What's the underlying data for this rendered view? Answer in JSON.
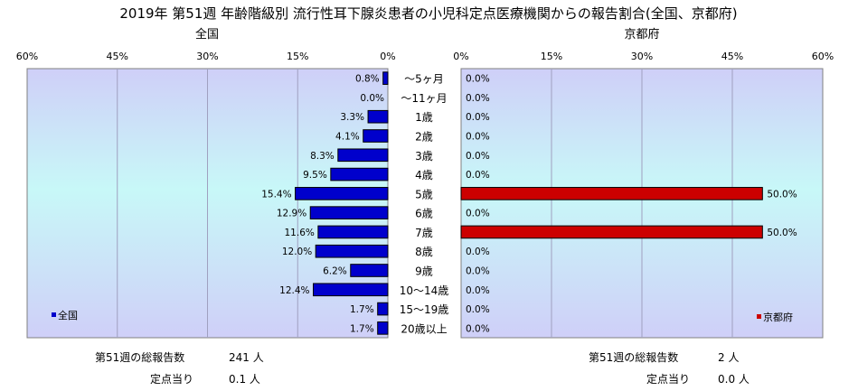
{
  "title": "2019年 第51週 年齢階級別 流行性耳下腺炎患者の小児科定点医療機関からの報告割合(全国、京都府)",
  "left_panel_title": "全国",
  "right_panel_title": "京都府",
  "colors": {
    "nation_bar": "#0000cc",
    "kyoto_bar": "#cc0000",
    "plot_bg_top": "#cfcff8",
    "plot_bg_mid": "#c8f8f8",
    "grid": "#a0a0c0"
  },
  "chart_data": {
    "type": "bar",
    "orientation": "horizontal-butterfly",
    "categories": [
      "〜5ヶ月",
      "〜11ヶ月",
      "1歳",
      "2歳",
      "3歳",
      "4歳",
      "5歳",
      "6歳",
      "7歳",
      "8歳",
      "9歳",
      "10〜14歳",
      "15〜19歳",
      "20歳以上"
    ],
    "series": [
      {
        "name": "全国",
        "side": "left",
        "values": [
          0.8,
          0.0,
          3.3,
          4.1,
          8.3,
          9.5,
          15.4,
          12.9,
          11.6,
          12.0,
          6.2,
          12.4,
          1.7,
          1.7
        ],
        "value_labels": [
          "0.8%",
          "0.0%",
          "3.3%",
          "4.1%",
          "8.3%",
          "9.5%",
          "15.4%",
          "12.9%",
          "11.6%",
          "12.0%",
          "6.2%",
          "12.4%",
          "1.7%",
          "1.7%"
        ]
      },
      {
        "name": "京都府",
        "side": "right",
        "values": [
          0.0,
          0.0,
          0.0,
          0.0,
          0.0,
          0.0,
          50.0,
          0.0,
          50.0,
          0.0,
          0.0,
          0.0,
          0.0,
          0.0
        ],
        "value_labels": [
          "0.0%",
          "0.0%",
          "0.0%",
          "0.0%",
          "0.0%",
          "0.0%",
          "50.0%",
          "0.0%",
          "50.0%",
          "0.0%",
          "0.0%",
          "0.0%",
          "0.0%",
          "0.0%"
        ]
      }
    ],
    "xlim": [
      0,
      60
    ],
    "left_ticks": [
      "60%",
      "45%",
      "30%",
      "15%",
      "0%"
    ],
    "right_ticks": [
      "0%",
      "15%",
      "30%",
      "45%",
      "60%"
    ],
    "grid": true,
    "legend_left": {
      "label": "全国",
      "placement": "bottom-left"
    },
    "legend_right": {
      "label": "京都府",
      "placement": "bottom-right"
    }
  },
  "footer_left": {
    "total_label": "第51週の総報告数",
    "total_value": "241 人",
    "per_label": "定点当り",
    "per_value": "0.1 人"
  },
  "footer_right": {
    "total_label": "第51週の総報告数",
    "total_value": "2 人",
    "per_label": "定点当り",
    "per_value": "0.0 人"
  }
}
